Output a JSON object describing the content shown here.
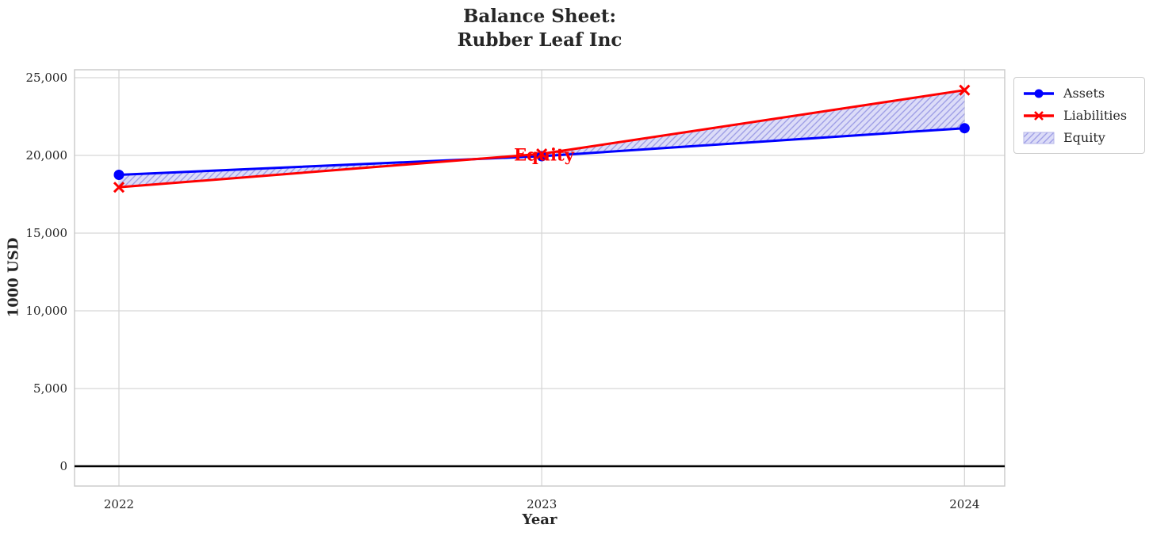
{
  "title": {
    "line1": "Balance Sheet:",
    "line2": "Rubber Leaf Inc"
  },
  "chart_data": {
    "type": "line",
    "x": [
      2022,
      2023,
      2024
    ],
    "xtick_labels": [
      "2022",
      "2023",
      "2024"
    ],
    "series": [
      {
        "name": "Assets",
        "color": "#0000ff",
        "marker": "circle",
        "values": [
          18750,
          19950,
          21750
        ]
      },
      {
        "name": "Liabilities",
        "color": "#ff0000",
        "marker": "x",
        "values": [
          17950,
          20100,
          24200
        ]
      }
    ],
    "fill_between": {
      "name": "Equity",
      "fill_color": "#dcdcf8",
      "hatch_color": "#9f9fe6",
      "hatch": "//"
    },
    "annotation": {
      "text": "Equity",
      "x": 2023,
      "y": 20000,
      "color": "#ff0000"
    },
    "xlabel": "Year",
    "ylabel": "1000 USD",
    "yticks": [
      0,
      5000,
      10000,
      15000,
      20000,
      25000
    ],
    "ytick_labels": [
      "0",
      "5,000",
      "10,000",
      "15,000",
      "20,000",
      "25,000"
    ],
    "xlim": [
      2021.895,
      2024.095
    ],
    "ylim": [
      -1276,
      25510
    ],
    "zero_line": true,
    "grid": true,
    "legend_position": "upper-right-outside",
    "legend": [
      "Assets",
      "Liabilities",
      "Equity"
    ]
  }
}
